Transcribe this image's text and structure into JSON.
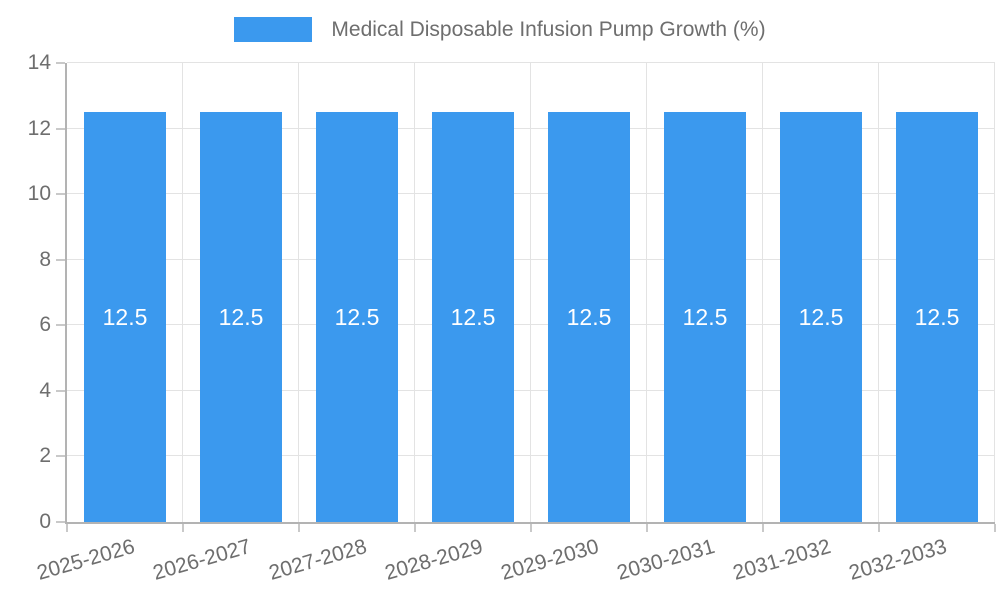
{
  "chart_data": {
    "type": "bar",
    "title": "",
    "legend": {
      "position": "top",
      "label": "Medical Disposable Infusion Pump Growth (%)"
    },
    "categories": [
      "2025-2026",
      "2026-2027",
      "2027-2028",
      "2028-2029",
      "2029-2030",
      "2030-2031",
      "2031-2032",
      "2032-2033"
    ],
    "series": [
      {
        "name": "Medical Disposable Infusion Pump Growth (%)",
        "values": [
          12.5,
          12.5,
          12.5,
          12.5,
          12.5,
          12.5,
          12.5,
          12.5
        ]
      }
    ],
    "bar_value_labels": [
      "12.5",
      "12.5",
      "12.5",
      "12.5",
      "12.5",
      "12.5",
      "12.5",
      "12.5"
    ],
    "xlabel": "",
    "ylabel": "",
    "ylim": [
      0,
      14
    ],
    "yticks": [
      0,
      2,
      4,
      6,
      8,
      10,
      12,
      14
    ],
    "grid": true,
    "colors": {
      "bar": "#3B99EE",
      "bar_label_text": "#FFFFFF",
      "axis_line": "#B3B3B3",
      "tick_mark": "#C9C9C9",
      "grid_line": "#E3E3E3",
      "label_text": "#6E6E6E",
      "background": "#FFFFFF"
    }
  }
}
